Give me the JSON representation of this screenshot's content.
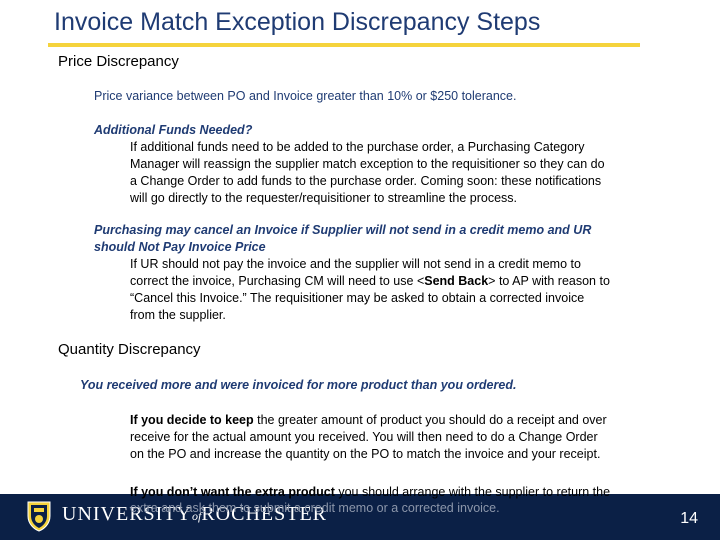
{
  "title": "Invoice Match Exception Discrepancy Steps",
  "price": {
    "heading": "Price Discrepancy",
    "variance": "Price variance between PO and Invoice greater than 10% or $250 tolerance.",
    "funds_heading": "Additional Funds Needed?",
    "funds_lines": [
      "If additional funds need to be added to the purchase order, a Purchasing Category",
      "Manager will reassign the supplier match exception to the requisitioner so they can do",
      "a Change Order to add funds to the purchase order. Coming soon: these notifications",
      "will go directly to the requester/requisitioner to streamline the process."
    ],
    "cancel_heading_1": "Purchasing may cancel an Invoice if Supplier will not send in a credit memo and UR",
    "cancel_heading_2": "should Not Pay Invoice Price",
    "cancel_line1": "If UR should not pay the invoice and the supplier will not send in a credit memo to",
    "cancel_line2_pre": "correct the invoice, Purchasing CM will need to use <",
    "cancel_line2_bold": "Send Back",
    "cancel_line2_post": "> to AP with reason to",
    "cancel_line3": "“Cancel this Invoice.” The requisitioner may be asked to obtain a corrected invoice",
    "cancel_line4": "from the supplier."
  },
  "quantity": {
    "heading": "Quantity Discrepancy",
    "received_heading": "You received more and were invoiced for more product than you ordered.",
    "keep_bold": "If you decide to keep",
    "keep_line1_rest": " the greater amount of product you should do a receipt and over",
    "keep_line2": "receive for the actual amount you received. You will then need to do a Change Order",
    "keep_line3": "on the PO and increase the quantity on the PO to match the invoice and your receipt.",
    "extra_bold": "If you don’t want the extra product",
    "extra_line1_rest": " you should arrange with the supplier to return the",
    "extra_line2": "extra and ask them to submit a credit memo or a corrected invoice."
  },
  "footer": {
    "university_pre": "UNIVERSITY",
    "university_of": "of",
    "university_post": "ROCHESTER",
    "page_number": "14"
  }
}
